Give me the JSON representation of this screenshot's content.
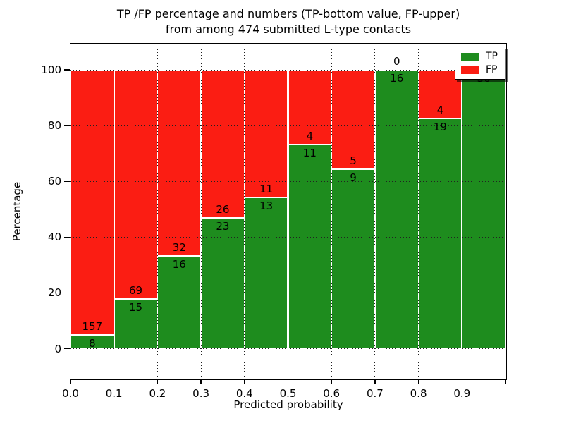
{
  "chart_data": {
    "type": "bar",
    "stacked": true,
    "title_line1": "TP /FP percentage and numbers (TP-bottom value, FP-upper)",
    "title_line2": "from among 474 submitted L-type contacts",
    "xlabel": "Predicted probability",
    "ylabel": "Percentage",
    "total_contacts": 474,
    "x_tick_labels": [
      "0.0",
      "0.1",
      "0.2",
      "0.3",
      "0.4",
      "0.5",
      "0.6",
      "0.7",
      "0.8",
      "0.9"
    ],
    "y_tick_labels": [
      "0",
      "20",
      "40",
      "60",
      "80",
      "100"
    ],
    "y_tick_values": [
      0,
      20,
      40,
      60,
      80,
      100
    ],
    "xlim": [
      0.0,
      1.0
    ],
    "ylim": [
      -11,
      109
    ],
    "grid": "dotted",
    "legend_position": "upper-right",
    "colors": {
      "tp": "#1e8c1e",
      "fp": "#fb1d13",
      "grid": "#222222",
      "text": "#000000"
    },
    "legend": [
      {
        "label": "TP",
        "key": "tp"
      },
      {
        "label": "FP",
        "key": "fp"
      }
    ],
    "bins": [
      {
        "x0": 0.0,
        "x1": 0.1,
        "tp": 8,
        "fp": 157,
        "tp_pct": 4.85
      },
      {
        "x0": 0.1,
        "x1": 0.2,
        "tp": 15,
        "fp": 69,
        "tp_pct": 17.86
      },
      {
        "x0": 0.2,
        "x1": 0.3,
        "tp": 16,
        "fp": 32,
        "tp_pct": 33.33
      },
      {
        "x0": 0.3,
        "x1": 0.4,
        "tp": 23,
        "fp": 26,
        "tp_pct": 46.94
      },
      {
        "x0": 0.4,
        "x1": 0.5,
        "tp": 13,
        "fp": 11,
        "tp_pct": 54.17
      },
      {
        "x0": 0.5,
        "x1": 0.6,
        "tp": 11,
        "fp": 4,
        "tp_pct": 73.33
      },
      {
        "x0": 0.6,
        "x1": 0.7,
        "tp": 9,
        "fp": 5,
        "tp_pct": 64.29
      },
      {
        "x0": 0.7,
        "x1": 0.8,
        "tp": 16,
        "fp": 0,
        "tp_pct": 100
      },
      {
        "x0": 0.8,
        "x1": 0.9,
        "tp": 19,
        "fp": 4,
        "tp_pct": 82.61
      },
      {
        "x0": 0.9,
        "x1": 1.0,
        "tp": 36,
        "fp": 0,
        "tp_pct": 100
      }
    ]
  }
}
